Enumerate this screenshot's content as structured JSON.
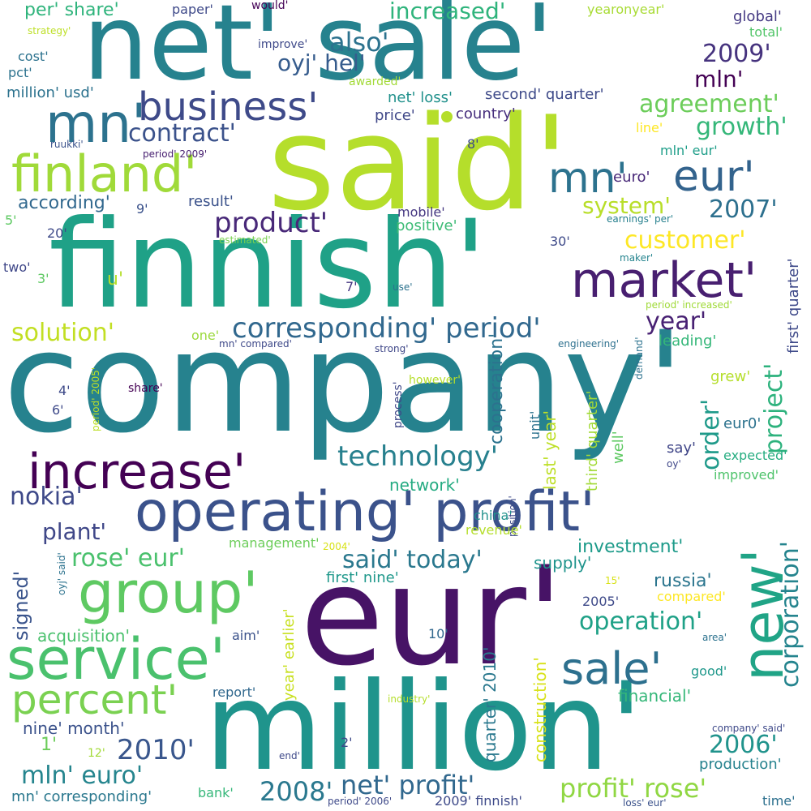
{
  "words": [
    {
      "text": "company'",
      "color": "#26828e",
      "rotated": false
    },
    {
      "text": "eur'",
      "color": "#471366",
      "rotated": false
    },
    {
      "text": "finnish'",
      "color": "#1fa187",
      "rotated": false
    },
    {
      "text": "said'",
      "color": "#b5de2b",
      "rotated": false
    },
    {
      "text": "million'",
      "color": "#1f948c",
      "rotated": false
    },
    {
      "text": "net' sale'",
      "color": "#26828e",
      "rotated": false
    },
    {
      "text": "operating' profit'",
      "color": "#3b528b",
      "rotated": false
    },
    {
      "text": "increase'",
      "color": "#440154",
      "rotated": false
    },
    {
      "text": "group'",
      "color": "#5ec962",
      "rotated": false
    },
    {
      "text": "service'",
      "color": "#4ac16d",
      "rotated": false
    },
    {
      "text": "market'",
      "color": "#481f70",
      "rotated": false
    },
    {
      "text": "finland'",
      "color": "#a0da39",
      "rotated": false
    },
    {
      "text": "mn'",
      "color": "#2c728e",
      "rotated": false
    },
    {
      "text": "eur'",
      "color": "#33638d",
      "rotated": false
    },
    {
      "text": "mn'",
      "color": "#2c728e",
      "rotated": false
    },
    {
      "text": "business'",
      "color": "#3e4a89",
      "rotated": false
    },
    {
      "text": "new'",
      "color": "#20a486",
      "rotated": true
    },
    {
      "text": "sale'",
      "color": "#2d708e",
      "rotated": false
    },
    {
      "text": "percent'",
      "color": "#7ad151",
      "rotated": false
    },
    {
      "text": "corresponding' period'",
      "color": "#31688e",
      "rotated": false
    },
    {
      "text": "technology'",
      "color": "#27808e",
      "rotated": false
    },
    {
      "text": "product'",
      "color": "#482878",
      "rotated": false
    },
    {
      "text": "nokia'",
      "color": "#3e4989",
      "rotated": false
    },
    {
      "text": "plant'",
      "color": "#3f4788",
      "rotated": false
    },
    {
      "text": "rose' eur'",
      "color": "#4ac16d",
      "rotated": false
    },
    {
      "text": "said' today'",
      "color": "#2a788e",
      "rotated": false
    },
    {
      "text": "net' profit'",
      "color": "#31688e",
      "rotated": false
    },
    {
      "text": "profit' rose'",
      "color": "#90d743",
      "rotated": false
    },
    {
      "text": "mln' euro'",
      "color": "#25858e",
      "rotated": false
    },
    {
      "text": "2010'",
      "color": "#39568c",
      "rotated": false
    },
    {
      "text": "2008'",
      "color": "#2a788e",
      "rotated": false
    },
    {
      "text": "2009'",
      "color": "#46337e",
      "rotated": false
    },
    {
      "text": "2006'",
      "color": "#20938c",
      "rotated": false
    },
    {
      "text": "2007'",
      "color": "#2d708e",
      "rotated": false
    },
    {
      "text": "operation'",
      "color": "#1fa187",
      "rotated": false
    },
    {
      "text": "agreement'",
      "color": "#6ccd5a",
      "rotated": false
    },
    {
      "text": "growth'",
      "color": "#35b779",
      "rotated": false
    },
    {
      "text": "customer'",
      "color": "#fde725",
      "rotated": false
    },
    {
      "text": "solution'",
      "color": "#c2df23",
      "rotated": false
    },
    {
      "text": "contract'",
      "color": "#3b528b",
      "rotated": false
    },
    {
      "text": "increased'",
      "color": "#2fb47c",
      "rotated": false
    },
    {
      "text": "also'",
      "color": "#2c728e",
      "rotated": false
    },
    {
      "text": "oyj' hel'",
      "color": "#365c8d",
      "rotated": false
    },
    {
      "text": "mln'",
      "color": "#440154",
      "rotated": false
    },
    {
      "text": "year'",
      "color": "#482173",
      "rotated": false
    },
    {
      "text": "system'",
      "color": "#b8de29",
      "rotated": false
    },
    {
      "text": "project'",
      "color": "#2db27d",
      "rotated": true
    },
    {
      "text": "corporation'",
      "color": "#25848e",
      "rotated": true
    },
    {
      "text": "order'",
      "color": "#1f9a8a",
      "rotated": true
    },
    {
      "text": "cooperation'",
      "color": "#2c728e",
      "rotated": true
    },
    {
      "text": "investment'",
      "color": "#1e9b8a",
      "rotated": false
    },
    {
      "text": "russia'",
      "color": "#2b758e",
      "rotated": false
    },
    {
      "text": "signed'",
      "color": "#3a548c",
      "rotated": true
    },
    {
      "text": "according'",
      "color": "#31688e",
      "rotated": false
    },
    {
      "text": "per' share'",
      "color": "#2fb47c",
      "rotated": false
    },
    {
      "text": "network'",
      "color": "#25ab82",
      "rotated": false
    },
    {
      "text": "supply'",
      "color": "#1f948c",
      "rotated": false
    },
    {
      "text": "first' nine'",
      "color": "#1f988b",
      "rotated": false
    },
    {
      "text": "acquisition'",
      "color": "#4ac16d",
      "rotated": false
    },
    {
      "text": "nine' month'",
      "color": "#3b528b",
      "rotated": false
    },
    {
      "text": "mn' corresponding'",
      "color": "#2a788e",
      "rotated": false
    },
    {
      "text": "financial'",
      "color": "#35b779",
      "rotated": false
    },
    {
      "text": "production'",
      "color": "#26828e",
      "rotated": false
    },
    {
      "text": "construction'",
      "color": "#d8e219",
      "rotated": true
    },
    {
      "text": "quarter' 2010'",
      "color": "#2a788e",
      "rotated": true
    },
    {
      "text": "year' earlier'",
      "color": "#c8e020",
      "rotated": true
    },
    {
      "text": "last' year'",
      "color": "#bddf26",
      "rotated": true
    },
    {
      "text": "third' quarter'",
      "color": "#a2da37",
      "rotated": true
    },
    {
      "text": "first' quarter'",
      "color": "#3e4989",
      "rotated": true
    },
    {
      "text": "expected'",
      "color": "#27ad81",
      "rotated": false
    },
    {
      "text": "improved'",
      "color": "#4ec36b",
      "rotated": false
    },
    {
      "text": "grew'",
      "color": "#b5de2b",
      "rotated": false
    },
    {
      "text": "leading'",
      "color": "#35b779",
      "rotated": false
    },
    {
      "text": "eur0'",
      "color": "#2c728e",
      "rotated": false
    },
    {
      "text": "say'",
      "color": "#404688",
      "rotated": false
    },
    {
      "text": "euro'",
      "color": "#482878",
      "rotated": false
    },
    {
      "text": "country'",
      "color": "#472f7d",
      "rotated": false
    },
    {
      "text": "price'",
      "color": "#3f4788",
      "rotated": false
    },
    {
      "text": "net' loss'",
      "color": "#21918c",
      "rotated": false
    },
    {
      "text": "second' quarter'",
      "color": "#3e4a89",
      "rotated": false
    },
    {
      "text": "global'",
      "color": "#443983",
      "rotated": false
    },
    {
      "text": "total'",
      "color": "#52c569",
      "rotated": false
    },
    {
      "text": "yearonyear'",
      "color": "#a8db34",
      "rotated": false
    },
    {
      "text": "paper'",
      "color": "#3e4989",
      "rotated": false
    },
    {
      "text": "would'",
      "color": "#450457",
      "rotated": false
    },
    {
      "text": "improve'",
      "color": "#3e4989",
      "rotated": false
    },
    {
      "text": "awarded'",
      "color": "#a2da37",
      "rotated": false
    },
    {
      "text": "strategy'",
      "color": "#bddf26",
      "rotated": false
    },
    {
      "text": "cost'",
      "color": "#2c728e",
      "rotated": false
    },
    {
      "text": "pct'",
      "color": "#2c728e",
      "rotated": false
    },
    {
      "text": "million' usd'",
      "color": "#2c728e",
      "rotated": false
    },
    {
      "text": "ruukki'",
      "color": "#3b528b",
      "rotated": false
    },
    {
      "text": "period' 2009'",
      "color": "#482071",
      "rotated": false
    },
    {
      "text": "8'",
      "color": "#3e4a89",
      "rotated": false
    },
    {
      "text": "line'",
      "color": "#fde725",
      "rotated": false
    },
    {
      "text": "mln' eur'",
      "color": "#1f9e89",
      "rotated": false
    },
    {
      "text": "result'",
      "color": "#3b528b",
      "rotated": false
    },
    {
      "text": "mobile'",
      "color": "#453781",
      "rotated": false
    },
    {
      "text": "positive'",
      "color": "#3cbb75",
      "rotated": false
    },
    {
      "text": "9'",
      "color": "#3b528b",
      "rotated": false
    },
    {
      "text": "5'",
      "color": "#5ec962",
      "rotated": false
    },
    {
      "text": "20'",
      "color": "#3e4a89",
      "rotated": false
    },
    {
      "text": "30'",
      "color": "#3e4a89",
      "rotated": false
    },
    {
      "text": "estimated'",
      "color": "#7ad151",
      "rotated": false
    },
    {
      "text": "earnings' per'",
      "color": "#27808e",
      "rotated": false
    },
    {
      "text": "maker'",
      "color": "#25848e",
      "rotated": false
    },
    {
      "text": "two'",
      "color": "#3f4788",
      "rotated": false
    },
    {
      "text": "3'",
      "color": "#5ec962",
      "rotated": false
    },
    {
      "text": "u'",
      "color": "#b5de2b",
      "rotated": false
    },
    {
      "text": "7'",
      "color": "#453781",
      "rotated": false
    },
    {
      "text": "use'",
      "color": "#2c728e",
      "rotated": false
    },
    {
      "text": "period' increased'",
      "color": "#a0da39",
      "rotated": false
    },
    {
      "text": "one'",
      "color": "#9bd93c",
      "rotated": false
    },
    {
      "text": "mn' compared'",
      "color": "#3e4989",
      "rotated": false
    },
    {
      "text": "strong'",
      "color": "#3f4788",
      "rotated": false
    },
    {
      "text": "engineering'",
      "color": "#2d708e",
      "rotated": false
    },
    {
      "text": "demand'",
      "color": "#2c728e",
      "rotated": true
    },
    {
      "text": "period' 2005'",
      "color": "#bddf26",
      "rotated": true
    },
    {
      "text": "4'",
      "color": "#3e4a89",
      "rotated": false
    },
    {
      "text": "6'",
      "color": "#3e4a89",
      "rotated": false
    },
    {
      "text": "share'",
      "color": "#440154",
      "rotated": false
    },
    {
      "text": "process'",
      "color": "#3f4788",
      "rotated": true
    },
    {
      "text": "however'",
      "color": "#b5de2b",
      "rotated": false
    },
    {
      "text": "unit'",
      "color": "#2c728e",
      "rotated": true
    },
    {
      "text": "well'",
      "color": "#5ec962",
      "rotated": true
    },
    {
      "text": "oy'",
      "color": "#3f4788",
      "rotated": false
    },
    {
      "text": "position'",
      "color": "#3e4a89",
      "rotated": true
    },
    {
      "text": "china'",
      "color": "#21918c",
      "rotated": false
    },
    {
      "text": "revenue'",
      "color": "#b5de2b",
      "rotated": false
    },
    {
      "text": "management'",
      "color": "#6ccd5a",
      "rotated": false
    },
    {
      "text": "2004'",
      "color": "#d8e219",
      "rotated": false
    },
    {
      "text": "oyj' said'",
      "color": "#2c728e",
      "rotated": true
    },
    {
      "text": "15'",
      "color": "#d8e219",
      "rotated": false
    },
    {
      "text": "compared'",
      "color": "#fde725",
      "rotated": false
    },
    {
      "text": "2005'",
      "color": "#3e4a89",
      "rotated": false
    },
    {
      "text": "aim'",
      "color": "#3b528b",
      "rotated": false
    },
    {
      "text": "10'",
      "color": "#31688e",
      "rotated": false
    },
    {
      "text": "area'",
      "color": "#2c728e",
      "rotated": false
    },
    {
      "text": "good'",
      "color": "#1f988b",
      "rotated": false
    },
    {
      "text": "report'",
      "color": "#31688e",
      "rotated": false
    },
    {
      "text": "industry'",
      "color": "#b5de2b",
      "rotated": false
    },
    {
      "text": "1'",
      "color": "#6ccd5a",
      "rotated": false
    },
    {
      "text": "12'",
      "color": "#a2da37",
      "rotated": false
    },
    {
      "text": "2'",
      "color": "#3e4a89",
      "rotated": false
    },
    {
      "text": "end'",
      "color": "#3e4989",
      "rotated": false
    },
    {
      "text": "company' said'",
      "color": "#3e4989",
      "rotated": false
    },
    {
      "text": "bank'",
      "color": "#35b779",
      "rotated": false
    },
    {
      "text": "period' 2006'",
      "color": "#3e4989",
      "rotated": false
    },
    {
      "text": "2009' finnish'",
      "color": "#3e4a89",
      "rotated": false
    },
    {
      "text": "loss' eur'",
      "color": "#3b528b",
      "rotated": false
    },
    {
      "text": "time'",
      "color": "#2d708e",
      "rotated": false
    }
  ]
}
